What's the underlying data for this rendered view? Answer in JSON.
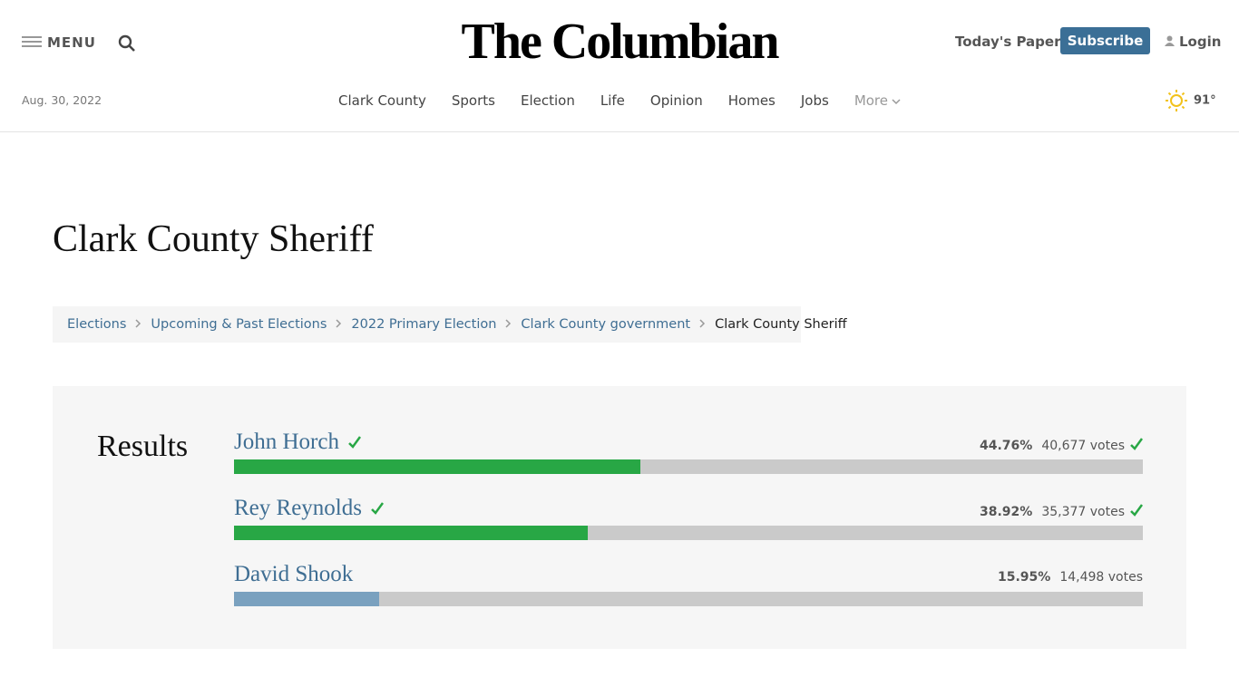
{
  "header": {
    "menu": "MENU",
    "logo": "The Columbian",
    "todays_paper": "Today's Paper",
    "subscribe": "Subscribe",
    "login": "Login",
    "date": "Aug. 30, 2022",
    "nav": [
      "Clark County",
      "Sports",
      "Election",
      "Life",
      "Opinion",
      "Homes",
      "Jobs"
    ],
    "more": "More",
    "temperature": "91°"
  },
  "page": {
    "title": "Clark County Sheriff",
    "breadcrumbs": [
      "Elections",
      "Upcoming & Past Elections",
      "2022 Primary Election",
      "Clark County government",
      "Clark County Sheriff"
    ]
  },
  "results": {
    "heading": "Results",
    "candidates": [
      {
        "name": "John Horch",
        "percent": 44.76,
        "percent_label": "44.76%",
        "votes": "40,677 votes",
        "winner": true,
        "color": "#28a745"
      },
      {
        "name": "Rey Reynolds",
        "percent": 38.92,
        "percent_label": "38.92%",
        "votes": "35,377 votes",
        "winner": true,
        "color": "#28a745"
      },
      {
        "name": "David Shook",
        "percent": 15.95,
        "percent_label": "15.95%",
        "votes": "14,498 votes",
        "winner": false,
        "color": "#7aa1bf"
      }
    ]
  }
}
